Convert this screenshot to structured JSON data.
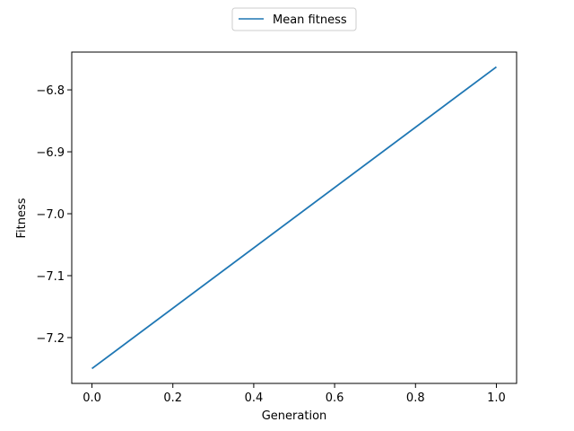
{
  "chart_data": {
    "type": "line",
    "title": "",
    "xlabel": "Generation",
    "ylabel": "Fitness",
    "xlim": [
      -0.05,
      1.05
    ],
    "ylim": [
      -7.274,
      -6.739
    ],
    "x_ticks": [
      0.0,
      0.2,
      0.4,
      0.6,
      0.8,
      1.0
    ],
    "x_tick_labels": [
      "0.0",
      "0.2",
      "0.4",
      "0.6",
      "0.8",
      "1.0"
    ],
    "y_ticks": [
      -6.8,
      -6.9,
      -7.0,
      -7.1,
      -7.2
    ],
    "y_tick_labels": [
      "−6.8",
      "−6.9",
      "−7.0",
      "−7.1",
      "−7.2"
    ],
    "grid": false,
    "legend_position": "top-center, outside plot",
    "series": [
      {
        "name": "Mean fitness",
        "color": "#1f77b4",
        "x": [
          0,
          1
        ],
        "y": [
          -7.25,
          -6.763
        ]
      }
    ]
  }
}
